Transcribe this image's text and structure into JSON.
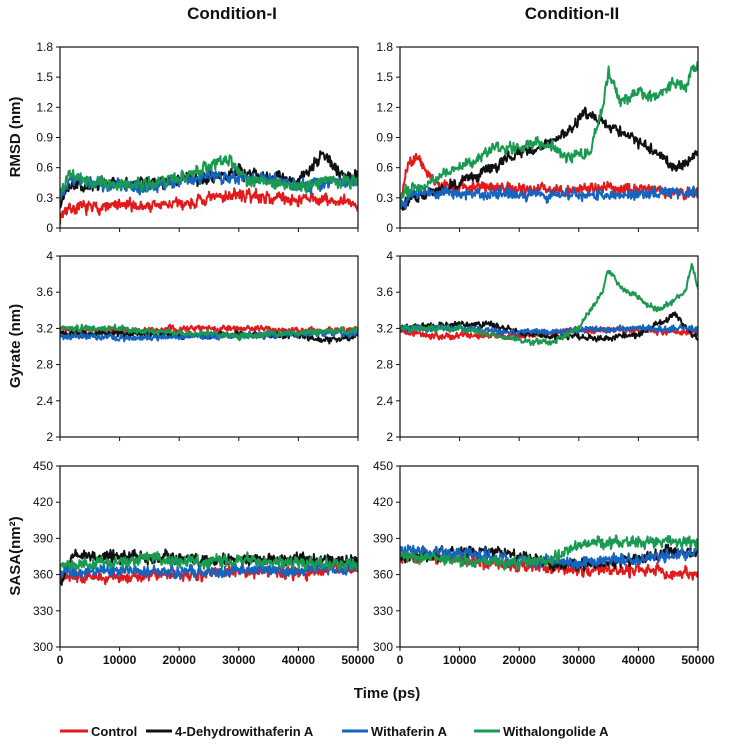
{
  "chart_data": {
    "type": "line",
    "column_titles": [
      "Condition-I",
      "Condition-II"
    ],
    "x_label": "Time (ps)",
    "x_ticks": [
      "0",
      "10000",
      "20000",
      "30000",
      "40000",
      "50000"
    ],
    "xlim": [
      0,
      50000
    ],
    "colors": {
      "Control": "#e31a1c",
      "4-Dehydrowithaferin A": "#111111",
      "Withaferin A": "#1565c0",
      "Withalongolide A": "#1a9a50"
    },
    "legend": [
      "Control",
      "4-Dehydrowithaferin A",
      "Withaferin A",
      "Withalongolide A"
    ],
    "rows": [
      {
        "ylabel": "RMSD (nm)",
        "ylim": [
          0,
          1.8
        ],
        "y_ticks": [
          "0",
          "0.3",
          "0.6",
          "0.9",
          "1.2",
          "1.5",
          "1.8"
        ],
        "panels": [
          {
            "condition": "Condition-I",
            "noise": 0.045,
            "series": [
              {
                "name": "Control",
                "x": [
                  0,
                  1000,
                  5000,
                  10000,
                  15000,
                  20000,
                  25000,
                  28000,
                  32000,
                  36000,
                  40000,
                  44000,
                  48000,
                  50000
                ],
                "y": [
                  0.1,
                  0.2,
                  0.2,
                  0.22,
                  0.22,
                  0.24,
                  0.28,
                  0.33,
                  0.32,
                  0.3,
                  0.28,
                  0.28,
                  0.25,
                  0.23
                ]
              },
              {
                "name": "4-Dehydrowithaferin A",
                "x": [
                  0,
                  1500,
                  5000,
                  10000,
                  15000,
                  20000,
                  25000,
                  30000,
                  35000,
                  40000,
                  42000,
                  44000,
                  46000,
                  48000,
                  50000
                ],
                "y": [
                  0.25,
                  0.4,
                  0.42,
                  0.45,
                  0.45,
                  0.47,
                  0.52,
                  0.55,
                  0.5,
                  0.48,
                  0.6,
                  0.75,
                  0.6,
                  0.5,
                  0.5
                ]
              },
              {
                "name": "Withaferin A",
                "x": [
                  0,
                  1500,
                  5000,
                  10000,
                  15000,
                  20000,
                  25000,
                  30000,
                  35000,
                  40000,
                  45000,
                  50000
                ],
                "y": [
                  0.25,
                  0.5,
                  0.45,
                  0.42,
                  0.4,
                  0.45,
                  0.52,
                  0.5,
                  0.48,
                  0.42,
                  0.45,
                  0.45
                ]
              },
              {
                "name": "Withalongolide A",
                "x": [
                  0,
                  1500,
                  5000,
                  10000,
                  15000,
                  20000,
                  25000,
                  28000,
                  31000,
                  35000,
                  40000,
                  45000,
                  50000
                ],
                "y": [
                  0.3,
                  0.55,
                  0.45,
                  0.42,
                  0.44,
                  0.5,
                  0.6,
                  0.7,
                  0.5,
                  0.45,
                  0.42,
                  0.45,
                  0.48
                ]
              }
            ]
          },
          {
            "condition": "Condition-II",
            "noise": 0.04,
            "series": [
              {
                "name": "Control",
                "x": [
                  0,
                  1000,
                  3000,
                  5000,
                  8000,
                  12000,
                  16000,
                  20000,
                  25000,
                  30000,
                  35000,
                  40000,
                  45000,
                  50000
                ],
                "y": [
                  0.2,
                  0.6,
                  0.7,
                  0.5,
                  0.4,
                  0.42,
                  0.4,
                  0.38,
                  0.37,
                  0.38,
                  0.4,
                  0.38,
                  0.36,
                  0.35
                ]
              },
              {
                "name": "4-Dehydrowithaferin A",
                "x": [
                  0,
                  2000,
                  5000,
                  8000,
                  12000,
                  16000,
                  20000,
                  24000,
                  28000,
                  31000,
                  34000,
                  37000,
                  40000,
                  43000,
                  46000,
                  48000,
                  50000
                ],
                "y": [
                  0.2,
                  0.3,
                  0.35,
                  0.4,
                  0.5,
                  0.6,
                  0.75,
                  0.8,
                  0.95,
                  1.15,
                  1.05,
                  0.95,
                  0.85,
                  0.75,
                  0.6,
                  0.65,
                  0.75
                ]
              },
              {
                "name": "Withaferin A",
                "x": [
                  0,
                  2000,
                  10000,
                  20000,
                  30000,
                  40000,
                  50000
                ],
                "y": [
                  0.2,
                  0.35,
                  0.35,
                  0.33,
                  0.32,
                  0.34,
                  0.35
                ]
              },
              {
                "name": "Withalongolide A",
                "x": [
                  0,
                  2000,
                  5000,
                  8000,
                  12000,
                  16000,
                  20000,
                  23000,
                  26000,
                  28000,
                  30000,
                  32000,
                  34000,
                  35000,
                  37000,
                  40000,
                  43000,
                  46000,
                  48000,
                  49000,
                  50000
                ],
                "y": [
                  0.3,
                  0.4,
                  0.45,
                  0.55,
                  0.65,
                  0.8,
                  0.8,
                  0.85,
                  0.8,
                  0.7,
                  0.7,
                  0.8,
                  1.2,
                  1.55,
                  1.25,
                  1.35,
                  1.3,
                  1.45,
                  1.4,
                  1.6,
                  1.6
                ]
              }
            ]
          }
        ]
      },
      {
        "ylabel": "Gyrate (nm)",
        "ylim": [
          2,
          4
        ],
        "y_ticks": [
          "2",
          "2.4",
          "2.8",
          "3.2",
          "3.6",
          "4"
        ],
        "panels": [
          {
            "condition": "Condition-I",
            "noise": 0.025,
            "series": [
              {
                "name": "Control",
                "x": [
                  0,
                  10000,
                  20000,
                  30000,
                  40000,
                  50000
                ],
                "y": [
                  3.18,
                  3.18,
                  3.2,
                  3.2,
                  3.18,
                  3.18
                ]
              },
              {
                "name": "4-Dehydrowithaferin A",
                "x": [
                  0,
                  10000,
                  20000,
                  30000,
                  40000,
                  44000,
                  48000,
                  50000
                ],
                "y": [
                  3.15,
                  3.14,
                  3.13,
                  3.12,
                  3.12,
                  3.07,
                  3.1,
                  3.12
                ]
              },
              {
                "name": "Withaferin A",
                "x": [
                  0,
                  10000,
                  20000,
                  30000,
                  40000,
                  50000
                ],
                "y": [
                  3.12,
                  3.1,
                  3.1,
                  3.12,
                  3.14,
                  3.14
                ]
              },
              {
                "name": "Withalongolide A",
                "x": [
                  0,
                  10000,
                  20000,
                  30000,
                  40000,
                  50000
                ],
                "y": [
                  3.2,
                  3.2,
                  3.15,
                  3.12,
                  3.15,
                  3.18
                ]
              }
            ]
          },
          {
            "condition": "Condition-II",
            "noise": 0.025,
            "series": [
              {
                "name": "Control",
                "x": [
                  0,
                  5000,
                  10000,
                  20000,
                  30000,
                  40000,
                  50000
                ],
                "y": [
                  3.18,
                  3.12,
                  3.12,
                  3.12,
                  3.18,
                  3.18,
                  3.15
                ]
              },
              {
                "name": "4-Dehydrowithaferin A",
                "x": [
                  0,
                  10000,
                  15000,
                  20000,
                  25000,
                  30000,
                  35000,
                  40000,
                  43000,
                  46000,
                  48000,
                  50000
                ],
                "y": [
                  3.2,
                  3.25,
                  3.25,
                  3.15,
                  3.12,
                  3.1,
                  3.1,
                  3.12,
                  3.25,
                  3.35,
                  3.2,
                  3.08
                ]
              },
              {
                "name": "Withaferin A",
                "x": [
                  0,
                  10000,
                  20000,
                  30000,
                  40000,
                  50000
                ],
                "y": [
                  3.2,
                  3.2,
                  3.15,
                  3.18,
                  3.2,
                  3.2
                ]
              },
              {
                "name": "Withalongolide A",
                "x": [
                  0,
                  10000,
                  18000,
                  22000,
                  26000,
                  30000,
                  32000,
                  34000,
                  35000,
                  37000,
                  40000,
                  43000,
                  46000,
                  48000,
                  49000,
                  50000
                ],
                "y": [
                  3.2,
                  3.2,
                  3.1,
                  3.05,
                  3.05,
                  3.2,
                  3.4,
                  3.6,
                  3.85,
                  3.65,
                  3.55,
                  3.4,
                  3.5,
                  3.65,
                  3.9,
                  3.65
                ]
              }
            ]
          }
        ]
      },
      {
        "ylabel": "SASA(nm²)",
        "ylim": [
          300,
          450
        ],
        "y_ticks": [
          "300",
          "330",
          "360",
          "390",
          "420",
          "450"
        ],
        "panels": [
          {
            "condition": "Condition-I",
            "noise": 3.5,
            "series": [
              {
                "name": "Control",
                "x": [
                  0,
                  10000,
                  20000,
                  30000,
                  40000,
                  50000
                ],
                "y": [
                  358,
                  358,
                  360,
                  362,
                  362,
                  364
                ]
              },
              {
                "name": "4-Dehydrowithaferin A",
                "x": [
                  0,
                  2000,
                  10000,
                  20000,
                  30000,
                  40000,
                  50000
                ],
                "y": [
                  350,
                  376,
                  375,
                  373,
                  372,
                  373,
                  370
                ]
              },
              {
                "name": "Withaferin A",
                "x": [
                  0,
                  10000,
                  20000,
                  30000,
                  40000,
                  50000
                ],
                "y": [
                  362,
                  364,
                  362,
                  364,
                  364,
                  366
                ]
              },
              {
                "name": "Withalongolide A",
                "x": [
                  0,
                  10000,
                  15000,
                  20000,
                  30000,
                  40000,
                  50000
                ],
                "y": [
                  368,
                  370,
                  375,
                  370,
                  372,
                  370,
                  368
                ]
              }
            ]
          },
          {
            "condition": "Condition-II",
            "noise": 3.5,
            "series": [
              {
                "name": "Control",
                "x": [
                  0,
                  10000,
                  20000,
                  30000,
                  40000,
                  45000,
                  50000
                ],
                "y": [
                  375,
                  372,
                  368,
                  364,
                  364,
                  362,
                  360
                ]
              },
              {
                "name": "4-Dehydrowithaferin A",
                "x": [
                  0,
                  10000,
                  15000,
                  20000,
                  25000,
                  30000,
                  40000,
                  45000,
                  50000
                ],
                "y": [
                  375,
                  378,
                  380,
                  375,
                  370,
                  368,
                  373,
                  380,
                  378
                ]
              },
              {
                "name": "Withaferin A",
                "x": [
                  0,
                  10000,
                  20000,
                  30000,
                  40000,
                  50000
                ],
                "y": [
                  380,
                  378,
                  372,
                  370,
                  374,
                  378
                ]
              },
              {
                "name": "Withalongolide A",
                "x": [
                  0,
                  10000,
                  20000,
                  25000,
                  30000,
                  40000,
                  50000
                ],
                "y": [
                  375,
                  372,
                  370,
                  372,
                  385,
                  388,
                  386
                ]
              }
            ]
          }
        ]
      }
    ]
  }
}
